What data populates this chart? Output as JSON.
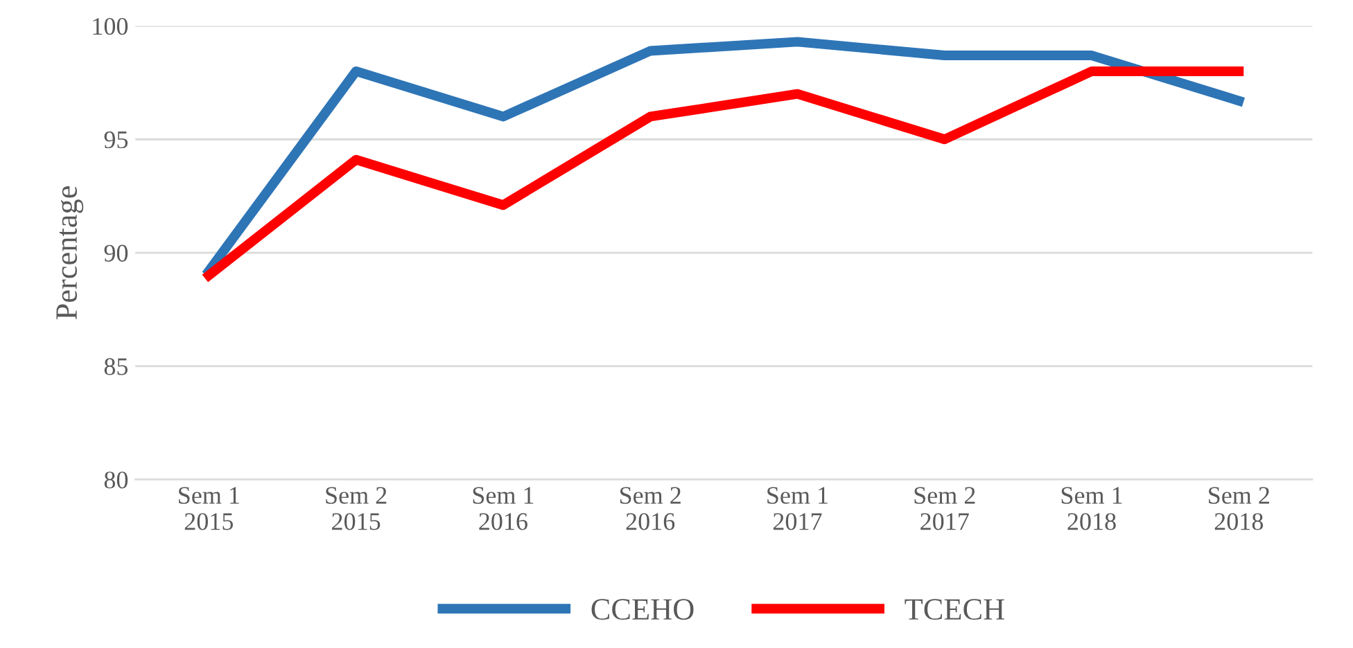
{
  "chart_data": {
    "type": "line",
    "ylabel": "Percentage",
    "categories": [
      "Sem 1\n2015",
      "Sem 2\n2015",
      "Sem 1\n2016",
      "Sem 2\n2016",
      "Sem 1\n2017",
      "Sem 2\n2017",
      "Sem 1\n2018",
      "Sem 2\n2018"
    ],
    "series": [
      {
        "name": "CCEHO",
        "color": "#2e75b6",
        "values": [
          89.2,
          98.0,
          96.0,
          98.9,
          99.3,
          98.7,
          98.7,
          96.7
        ]
      },
      {
        "name": "TCECH",
        "color": "#ff0000",
        "values": [
          89.0,
          94.1,
          92.1,
          96.0,
          97.0,
          95.0,
          98.0,
          98.0
        ]
      }
    ],
    "ylim": [
      80,
      100
    ],
    "yticks": [
      80,
      85,
      90,
      95,
      100
    ],
    "grid": "y",
    "legend": "bottom",
    "marker": "none",
    "line_style": "solid"
  }
}
